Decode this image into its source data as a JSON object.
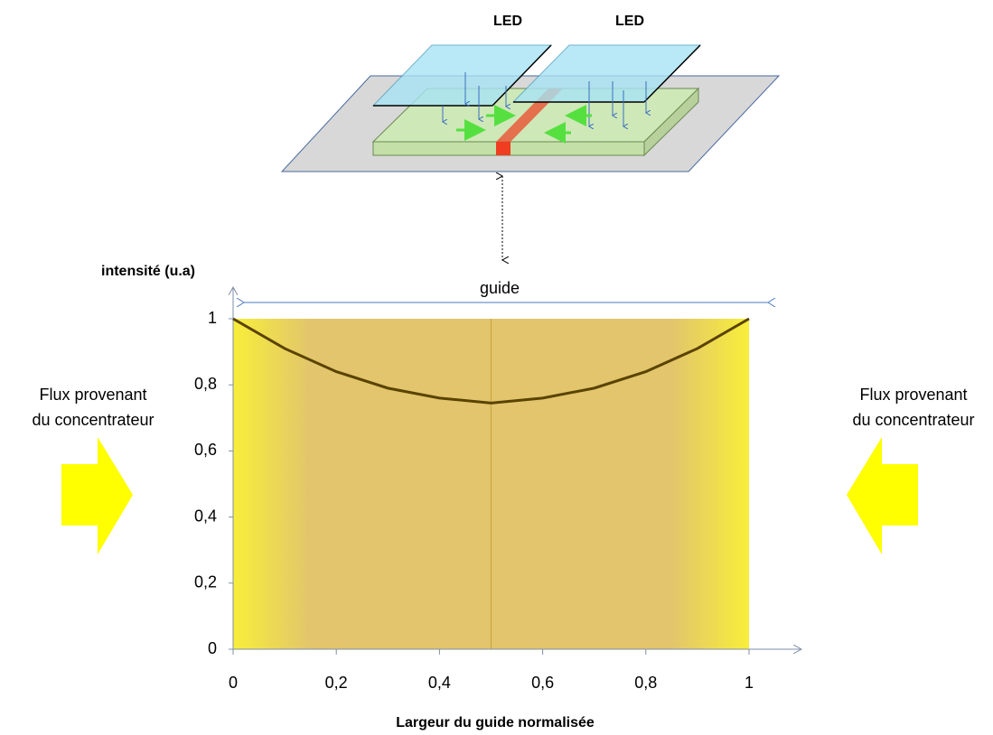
{
  "diagram": {
    "led_labels": [
      "LED",
      "LED"
    ]
  },
  "chart_data": {
    "type": "line",
    "y_label": "intensité (u.a)",
    "x_label": "Largeur du guide normalisée",
    "annotation": "guide",
    "side_labels": [
      [
        "Flux provenant",
        "du concentrateur"
      ],
      [
        "Flux provenant",
        "du concentrateur"
      ]
    ],
    "x": [
      0,
      0.1,
      0.2,
      0.3,
      0.4,
      0.5,
      0.6,
      0.7,
      0.8,
      0.9,
      1
    ],
    "values": [
      1,
      0.91,
      0.84,
      0.79,
      0.76,
      0.745,
      0.76,
      0.79,
      0.84,
      0.91,
      1
    ],
    "color": "#5a4300",
    "xlim": [
      0,
      1
    ],
    "ylim": [
      0,
      1
    ],
    "xticks": [
      0,
      {
        "value": 0.2,
        "label": "0,2"
      },
      {
        "value": 0.4,
        "label": "0,4"
      },
      {
        "value": 0.6,
        "label": "0,6"
      },
      {
        "value": 0.8,
        "label": "0,8"
      },
      1
    ],
    "yticks": [
      0,
      {
        "value": 0.2,
        "label": "0,2"
      },
      {
        "value": 0.4,
        "label": "0,4"
      },
      {
        "value": 0.6,
        "label": "0,6"
      },
      {
        "value": 0.8,
        "label": "0,8"
      },
      1
    ]
  }
}
